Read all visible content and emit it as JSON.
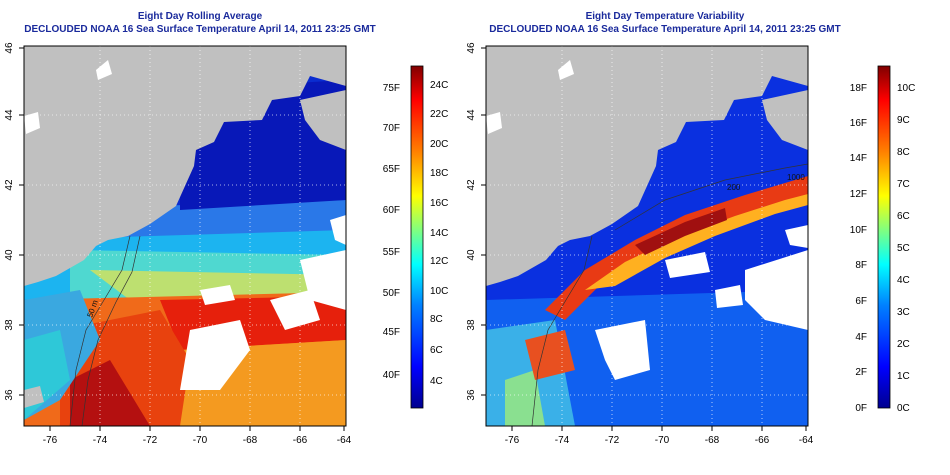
{
  "panels": [
    {
      "title": "Eight Day Rolling Average",
      "subtitle": "DECLOUDED NOAA 16 Sea Surface Temperature April 14, 2011 23:25 GMT",
      "x_ticks": [
        "-76",
        "-74",
        "-72",
        "-70",
        "-68",
        "-66",
        "-64"
      ],
      "y_ticks": [
        "36",
        "38",
        "40",
        "42",
        "44",
        "46"
      ],
      "colorbar_f": [
        "40F",
        "45F",
        "50F",
        "55F",
        "60F",
        "65F",
        "70F",
        "75F"
      ],
      "colorbar_c": [
        "4C",
        "6C",
        "8C",
        "10C",
        "12C",
        "14C",
        "16C",
        "18C",
        "20C",
        "22C",
        "24C"
      ],
      "contour_labels": [
        "50 m"
      ]
    },
    {
      "title": "Eight Day Temperature Variability",
      "subtitle": "DECLOUDED NOAA 16 Sea Surface Temperature April 14, 2011 23:25 GMT",
      "x_ticks": [
        "-76",
        "-74",
        "-72",
        "-70",
        "-68",
        "-66",
        "-64"
      ],
      "y_ticks": [
        "36",
        "38",
        "40",
        "42",
        "44",
        "46"
      ],
      "colorbar_f": [
        "0F",
        "2F",
        "4F",
        "6F",
        "8F",
        "10F",
        "12F",
        "14F",
        "16F",
        "18F"
      ],
      "colorbar_c": [
        "0C",
        "1C",
        "2C",
        "3C",
        "4C",
        "5C",
        "6C",
        "7C",
        "8C",
        "9C",
        "10C"
      ],
      "contour_labels": [
        "200",
        "1000"
      ]
    }
  ],
  "colors": {
    "title": "#1a2a9c",
    "land": "#c0c0c0",
    "cloud": "#ffffff",
    "colormap": [
      "#00008f",
      "#0000ff",
      "#0080ff",
      "#00ffff",
      "#80ff80",
      "#ffff00",
      "#ff8000",
      "#ff0000",
      "#800000"
    ]
  }
}
